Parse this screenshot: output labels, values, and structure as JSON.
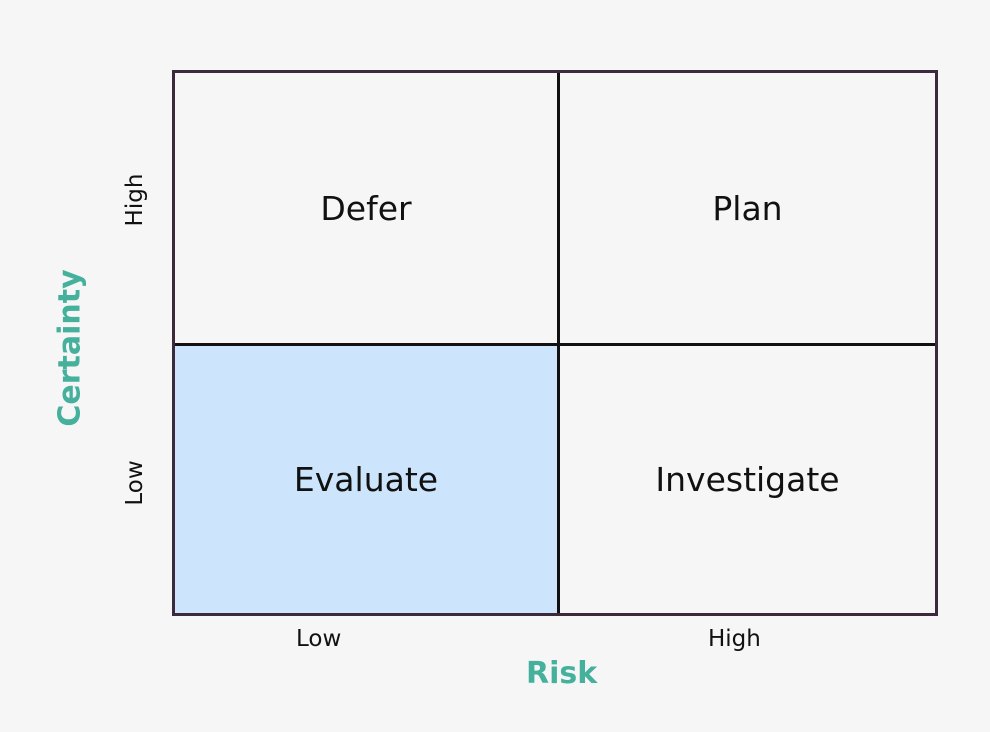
{
  "quadrants": {
    "top_left": "Defer",
    "top_right": "Plan",
    "bottom_left": "Evaluate",
    "bottom_right": "Investigate"
  },
  "x_axis": {
    "label": "Risk",
    "ticks": [
      "Low",
      "High"
    ]
  },
  "y_axis": {
    "label": "Certainty",
    "ticks": [
      "High",
      "Low"
    ]
  },
  "colors": {
    "highlight": "#cce5fc",
    "axis_label": "#45b09c",
    "border": "#3b2a3c",
    "background": "#f6f6f6"
  },
  "highlighted_quadrant": "bottom_left"
}
